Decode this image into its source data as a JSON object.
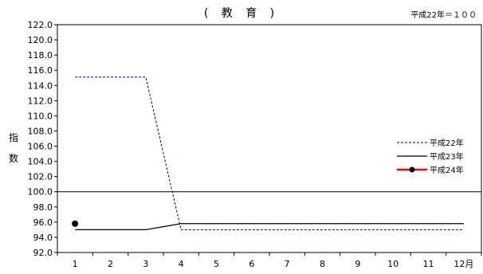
{
  "chart_data": {
    "type": "line",
    "title": "( 教 育 )",
    "base_note": "平成22年＝１００",
    "ylabel": "指数",
    "categories": [
      "1",
      "2",
      "3",
      "4",
      "5",
      "6",
      "7",
      "8",
      "9",
      "10",
      "11",
      "12月"
    ],
    "ylim": [
      92.0,
      122.0
    ],
    "ytick_step": 2.0,
    "yticks": [
      "92.0",
      "94.0",
      "96.0",
      "98.0",
      "100.0",
      "102.0",
      "104.0",
      "106.0",
      "108.0",
      "110.0",
      "112.0",
      "114.0",
      "116.0",
      "118.0",
      "120.0",
      "122.0"
    ],
    "reference_line": 100.0,
    "legend_position": "right",
    "series": [
      {
        "name": "平成22年",
        "color": "#000080",
        "style": "dashed",
        "values": [
          115.1,
          115.1,
          115.1,
          95.0,
          95.0,
          95.0,
          95.0,
          95.0,
          95.0,
          95.0,
          95.0,
          95.0
        ]
      },
      {
        "name": "平成23年",
        "color": "#000000",
        "style": "solid",
        "values": [
          95.0,
          95.0,
          95.0,
          95.8,
          95.8,
          95.8,
          95.8,
          95.8,
          95.8,
          95.8,
          95.8,
          95.8
        ]
      },
      {
        "name": "平成24年",
        "color": "#ff0000",
        "style": "solid-marker",
        "marker_color": "#000000",
        "values": [
          95.8,
          null,
          null,
          null,
          null,
          null,
          null,
          null,
          null,
          null,
          null,
          null
        ]
      }
    ]
  }
}
